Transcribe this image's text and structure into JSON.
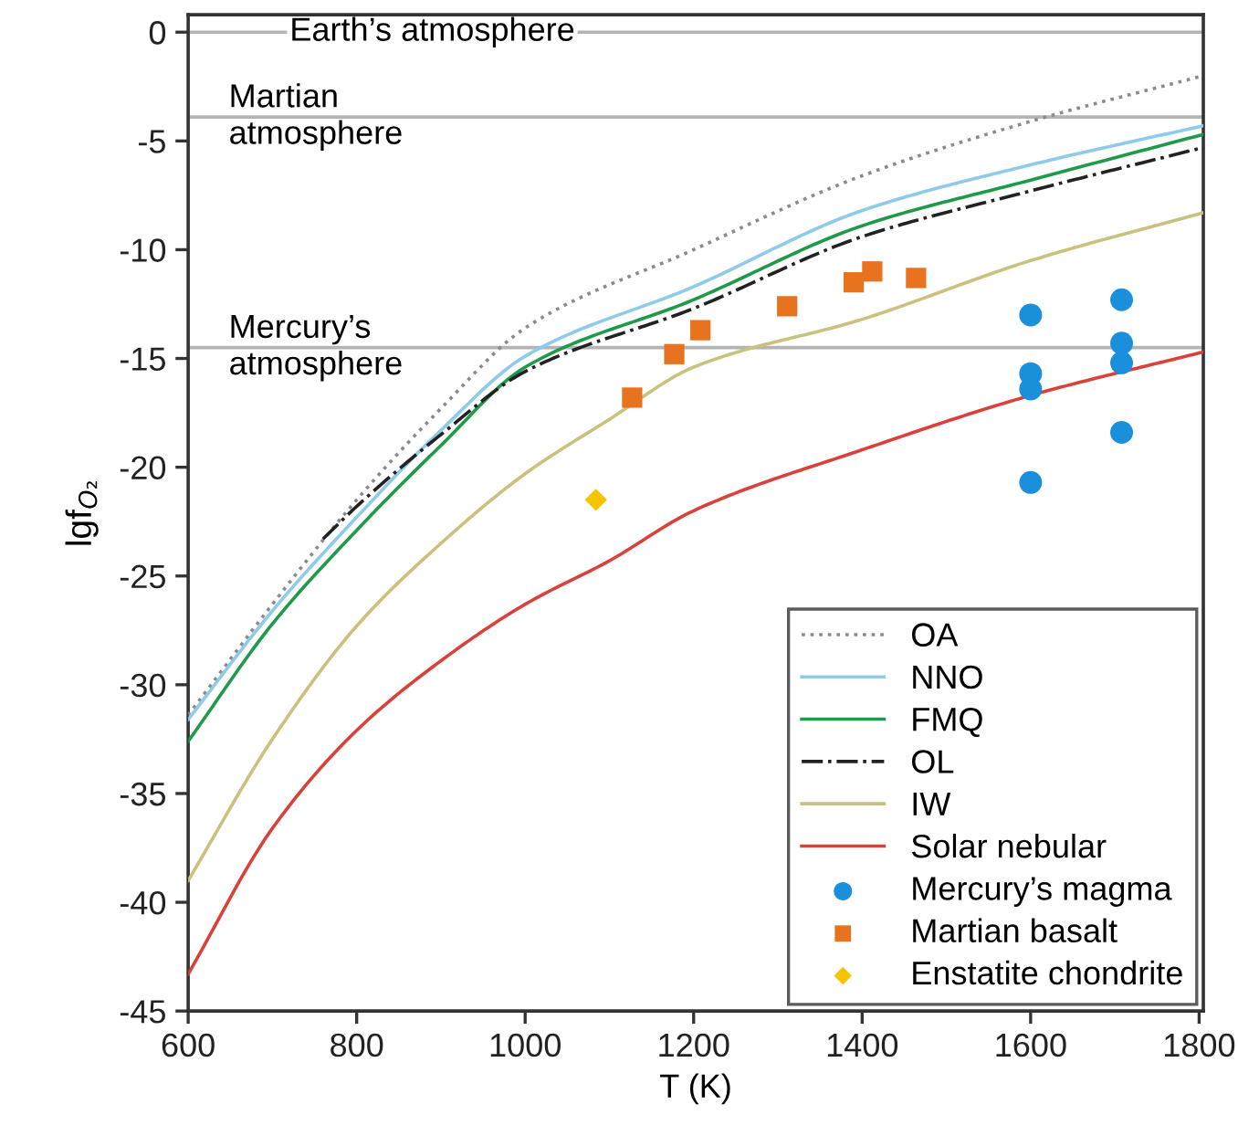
{
  "chart_data": {
    "type": "line",
    "xlabel": "T (K)",
    "ylabel": "lgf$_{O₂}$",
    "xlim": [
      600,
      1805
    ],
    "ylim": [
      -45,
      0.8
    ],
    "xticks": [
      600,
      800,
      1000,
      1200,
      1400,
      1600,
      1800
    ],
    "yticks": [
      0,
      -5,
      -10,
      -15,
      -20,
      -25,
      -30,
      -35,
      -40,
      -45
    ],
    "grid": false,
    "legend": "bottom right",
    "ref_lines": [
      {
        "axis": "y",
        "value": 0,
        "label": "Earth’s atmosphere",
        "color": "#b4b4b4"
      },
      {
        "axis": "y",
        "value": -3.9,
        "label": "Martian\natmosphere",
        "color": "#b4b4b4"
      },
      {
        "axis": "y",
        "value": -14.5,
        "label": "Mercury’s\natmosphere",
        "color": "#b4b4b4"
      }
    ],
    "series": [
      {
        "name": "OA",
        "color": "#8a8a8a",
        "line_style": "dotted",
        "x": [
          600,
          700,
          800,
          900,
          1000,
          1200,
          1400,
          1600,
          1805
        ],
        "values": [
          -31.4,
          -26.3,
          -21.5,
          -17.3,
          -13.6,
          -10.0,
          -6.6,
          -4.1,
          -2.0
        ]
      },
      {
        "name": "NNO",
        "color": "#8ecbea",
        "line_style": "solid",
        "x": [
          600,
          700,
          800,
          900,
          1000,
          1200,
          1400,
          1600,
          1805
        ],
        "values": [
          -31.6,
          -26.6,
          -22.3,
          -18.3,
          -14.9,
          -11.7,
          -8.2,
          -6.1,
          -4.3
        ]
      },
      {
        "name": "FMQ",
        "color": "#1e9a4a",
        "line_style": "solid",
        "x": [
          600,
          700,
          800,
          900,
          1000,
          1200,
          1400,
          1600,
          1805
        ],
        "values": [
          -32.6,
          -27.2,
          -22.9,
          -19.0,
          -15.4,
          -12.3,
          -8.9,
          -6.8,
          -4.7
        ]
      },
      {
        "name": "OL",
        "color": "#222222",
        "line_style": "dashdot",
        "x": [
          760,
          800,
          900,
          1000,
          1200,
          1400,
          1600,
          1805
        ],
        "values": [
          -23.3,
          -21.8,
          -18.5,
          -15.6,
          -12.7,
          -9.4,
          -7.3,
          -5.3
        ]
      },
      {
        "name": "IW",
        "color": "#c9c27e",
        "line_style": "solid",
        "x": [
          600,
          700,
          800,
          900,
          1000,
          1100,
          1200,
          1400,
          1600,
          1805
        ],
        "values": [
          -39.0,
          -32.5,
          -27.3,
          -23.5,
          -20.3,
          -17.8,
          -15.4,
          -13.2,
          -10.5,
          -8.3
        ]
      },
      {
        "name": "Solar nebular",
        "color": "#d9413a",
        "line_style": "solid",
        "x": [
          600,
          700,
          800,
          900,
          1000,
          1100,
          1200,
          1400,
          1600,
          1805
        ],
        "values": [
          -43.3,
          -36.6,
          -32.1,
          -28.9,
          -26.3,
          -24.3,
          -22.0,
          -19.2,
          -16.7,
          -14.7
        ]
      },
      {
        "name": "Mercury’s magma",
        "type": "scatter",
        "marker": "circle",
        "color": "#1a8fdc",
        "x": [
          1600,
          1600,
          1600,
          1600,
          1708,
          1708,
          1708,
          1708
        ],
        "values": [
          -13.0,
          -15.7,
          -16.4,
          -20.7,
          -12.3,
          -14.3,
          -15.2,
          -18.4
        ]
      },
      {
        "name": "Martian basalt",
        "type": "scatter",
        "marker": "square",
        "color": "#e8731f",
        "x": [
          1127,
          1177,
          1208,
          1311,
          1390,
          1412,
          1464
        ],
        "values": [
          -16.8,
          -14.8,
          -13.7,
          -12.6,
          -11.5,
          -11.0,
          -11.3
        ]
      },
      {
        "name": "Enstatite chondrite",
        "type": "scatter",
        "marker": "diamond",
        "color": "#f5c400",
        "x": [
          1084
        ],
        "values": [
          -21.5
        ]
      }
    ]
  }
}
